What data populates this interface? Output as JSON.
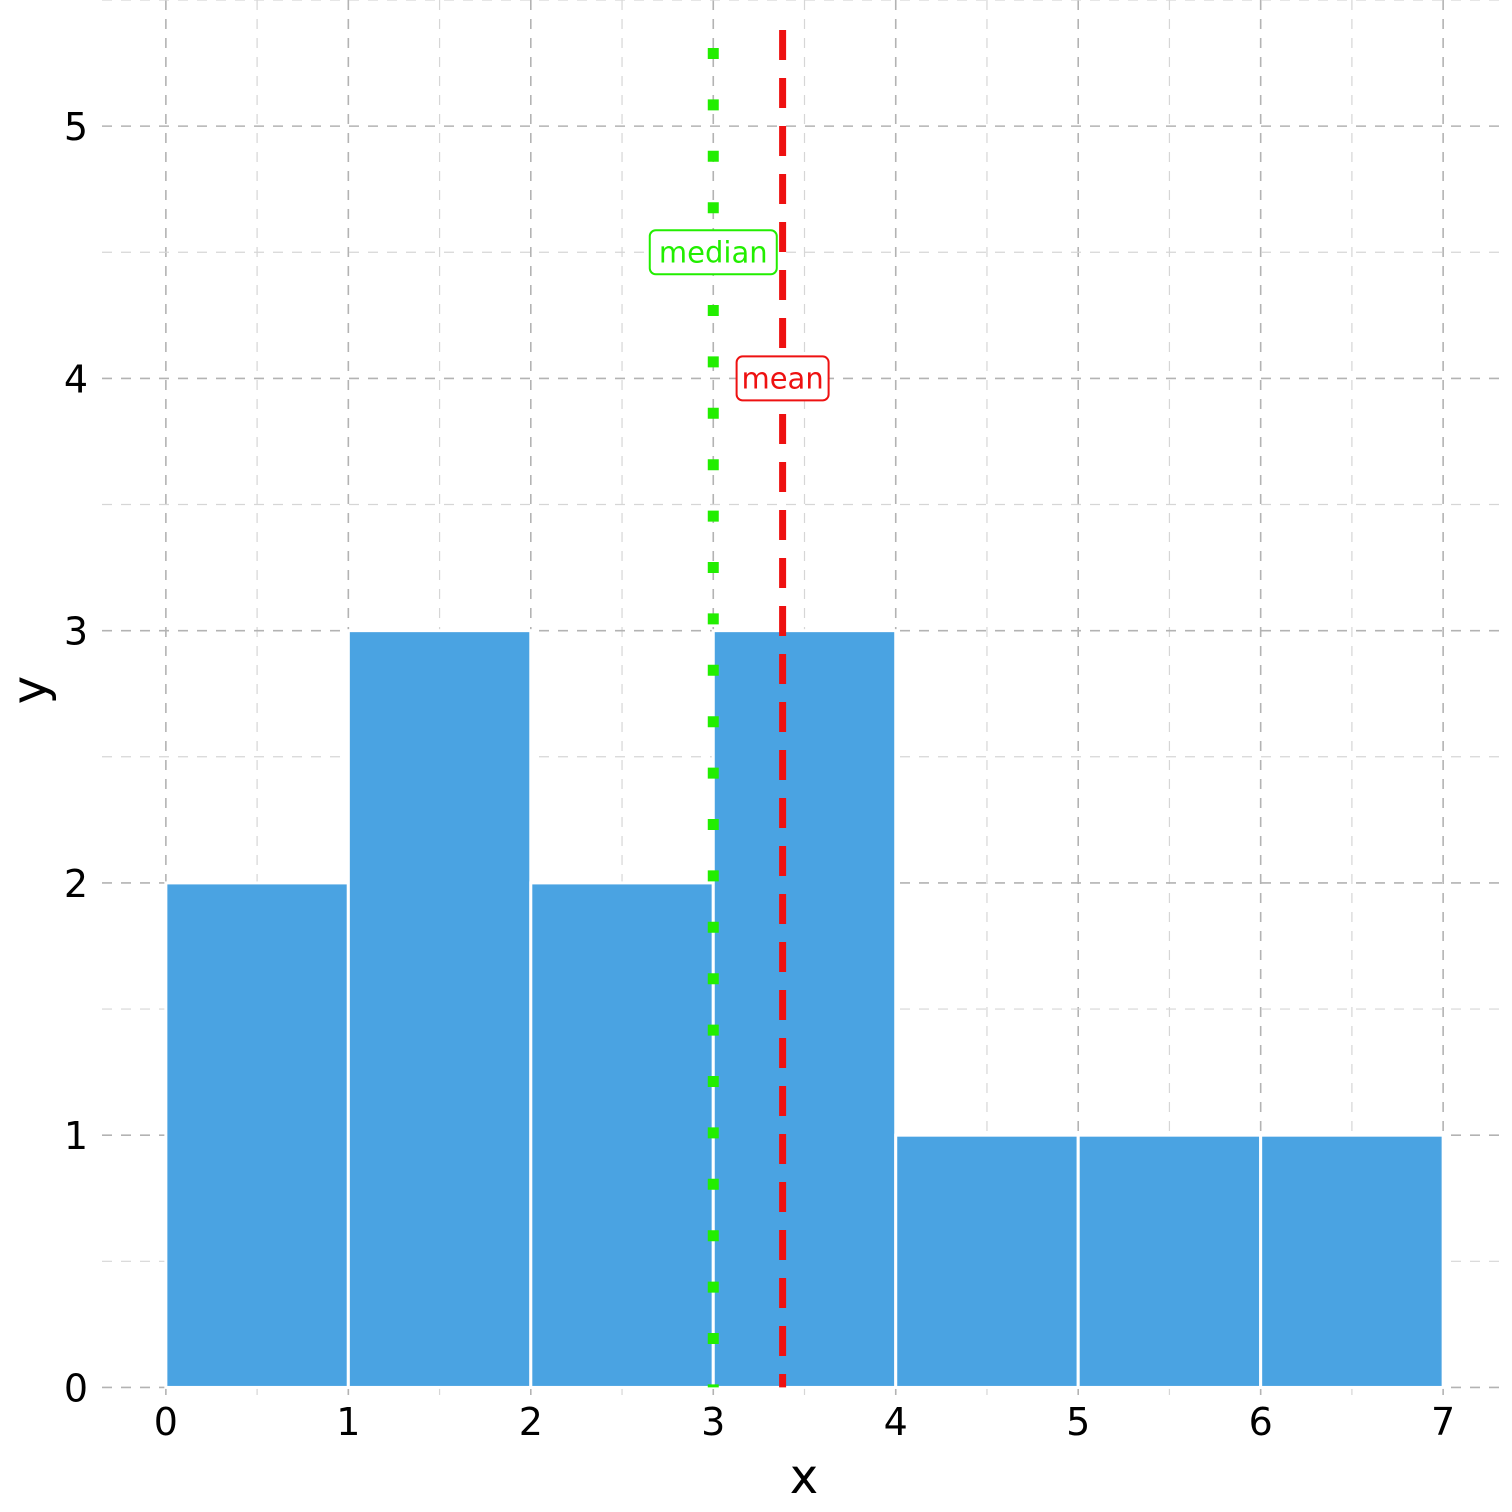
{
  "chart_data": {
    "type": "bar",
    "subtype": "histogram",
    "bins": [
      {
        "x0": 0,
        "x1": 1,
        "count": 2
      },
      {
        "x0": 1,
        "x1": 2,
        "count": 3
      },
      {
        "x0": 2,
        "x1": 3,
        "count": 2
      },
      {
        "x0": 3,
        "x1": 4,
        "count": 3
      },
      {
        "x0": 4,
        "x1": 5,
        "count": 1
      },
      {
        "x0": 5,
        "x1": 6,
        "count": 1
      },
      {
        "x0": 6,
        "x1": 7,
        "count": 1
      }
    ],
    "xlabel": "x",
    "ylabel": "y",
    "xlim": [
      -0.35,
      7.35
    ],
    "ylim": [
      -0.03,
      5.5
    ],
    "xticks": [
      "0",
      "1",
      "2",
      "3",
      "4",
      "5",
      "6",
      "7"
    ],
    "yticks": [
      "0",
      "1",
      "2",
      "3",
      "4",
      "5"
    ],
    "grid": true,
    "grid_style": "dashed",
    "bar_color": "#4aa3e2",
    "reference_lines": [
      {
        "label": "median",
        "x": 3,
        "style": "dotted",
        "color": "#22ee00",
        "label_y": 4.5
      },
      {
        "label": "mean",
        "x": 3.38,
        "style": "dashed",
        "color": "#ee1111",
        "label_y": 4.0
      }
    ]
  }
}
